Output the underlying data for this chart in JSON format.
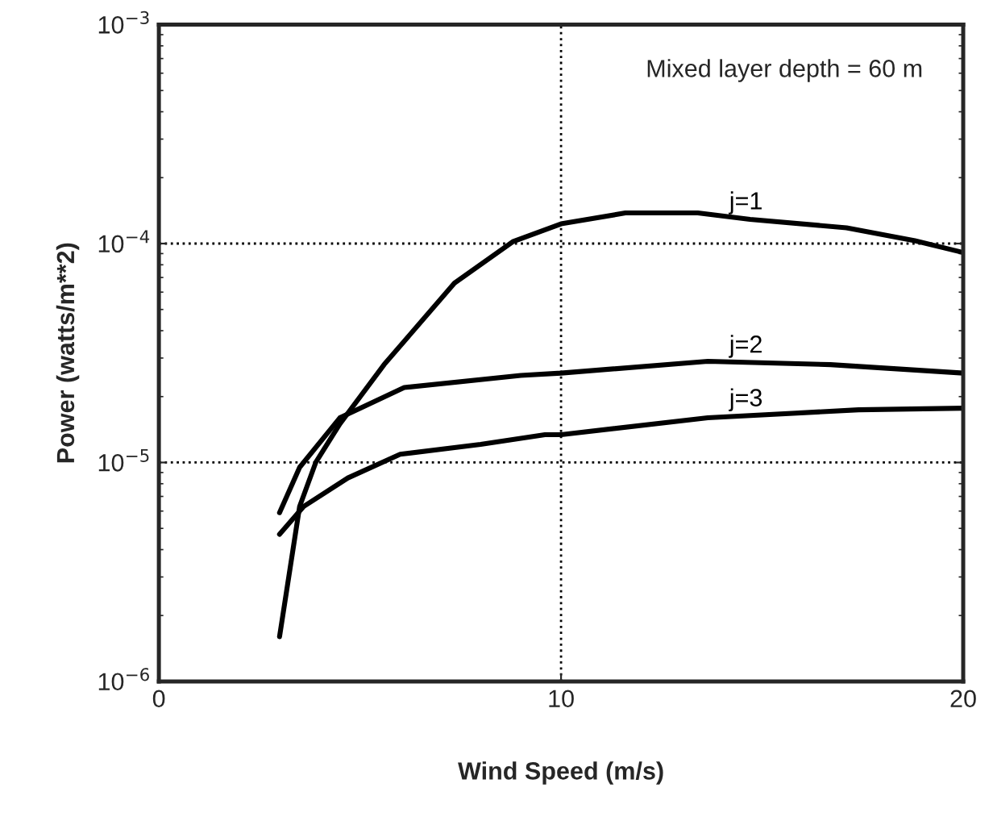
{
  "chart_data": {
    "type": "line",
    "xlabel": "Wind Speed (m/s)",
    "ylabel": "Power (watts/m**2)",
    "log": "y",
    "xlim": [
      0,
      20
    ],
    "xticks": [
      0,
      10,
      20
    ],
    "ylim": [
      1e-06,
      0.001
    ],
    "yticks": [
      {
        "value": 1e-06,
        "label": "10$^{−6}$"
      },
      {
        "value": 1e-05,
        "label": "10$^{−5}$"
      },
      {
        "value": 0.0001,
        "label": "10$^{−4}$"
      },
      {
        "value": 0.001,
        "label": "10$^{−3}$"
      }
    ],
    "grid": true,
    "legend": false,
    "marker": "none",
    "line_style": "solid",
    "annotations": [
      "Mixed layer depth = 60 m"
    ],
    "series": [
      {
        "name": "j=1",
        "color": "#000000",
        "x": [
          3.0,
          3.5,
          3.9,
          4.5,
          5.6,
          7.35,
          8.8,
          10,
          11.6,
          13.4,
          14.7,
          17.1,
          18.8,
          20
        ],
        "values": [
          1.6e-06,
          6.3e-06,
          1e-05,
          1.5e-05,
          2.8e-05,
          6.6e-05,
          0.000102,
          0.000123,
          0.000138,
          0.000138,
          0.000129,
          0.000118,
          0.000103,
          9.1e-05
        ]
      },
      {
        "name": "j=2",
        "color": "#000000",
        "x": [
          3.0,
          3.5,
          4.5,
          6.1,
          9,
          10,
          13.65,
          16.7,
          20
        ],
        "values": [
          5.9e-06,
          9.5e-06,
          1.6e-05,
          2.2e-05,
          2.5e-05,
          2.56e-05,
          2.9e-05,
          2.8e-05,
          2.56e-05
        ]
      },
      {
        "name": "j=3",
        "color": "#000000",
        "x": [
          3.0,
          3.6,
          4.7,
          6.0,
          8,
          9.6,
          10,
          13.65,
          17.4,
          20
        ],
        "values": [
          4.7e-06,
          6.3e-06,
          8.5e-06,
          1.09e-05,
          1.21e-05,
          1.34e-05,
          1.34e-05,
          1.6e-05,
          1.74e-05,
          1.77e-05
        ]
      }
    ]
  }
}
